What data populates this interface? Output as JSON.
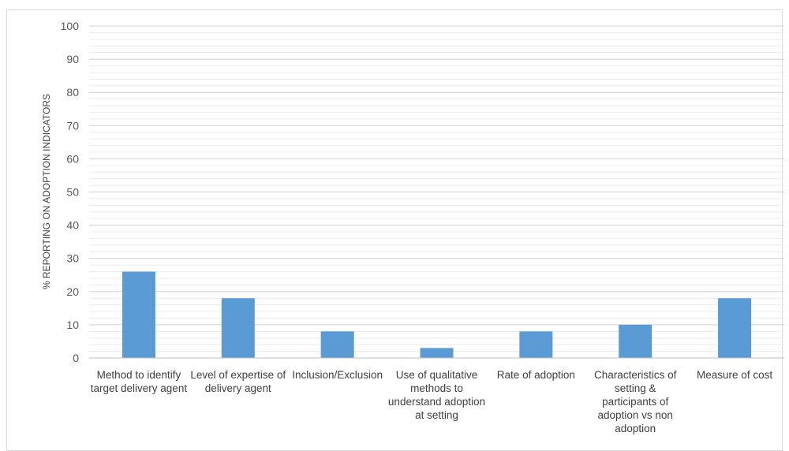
{
  "chart_data": {
    "type": "bar",
    "ylabel": "% REPORTING ON ADOPTION INDICATORS",
    "ylim": [
      0,
      100
    ],
    "yticks": [
      0,
      10,
      20,
      30,
      40,
      50,
      60,
      70,
      80,
      90,
      100
    ],
    "minor_grid_step": 2,
    "grid": true,
    "bar_color": "#5b9bd5",
    "categories": [
      "Method to identify target delivery agent",
      "Level of expertise of delivery agent",
      "Inclusion/Exclusion",
      "Use of qualitative methods to understand adoption at setting",
      "Rate of adoption",
      "Characteristics of setting & participants of adoption vs non adoption",
      "Measure of cost"
    ],
    "values": [
      26,
      18,
      8,
      3,
      8,
      10,
      18
    ]
  }
}
